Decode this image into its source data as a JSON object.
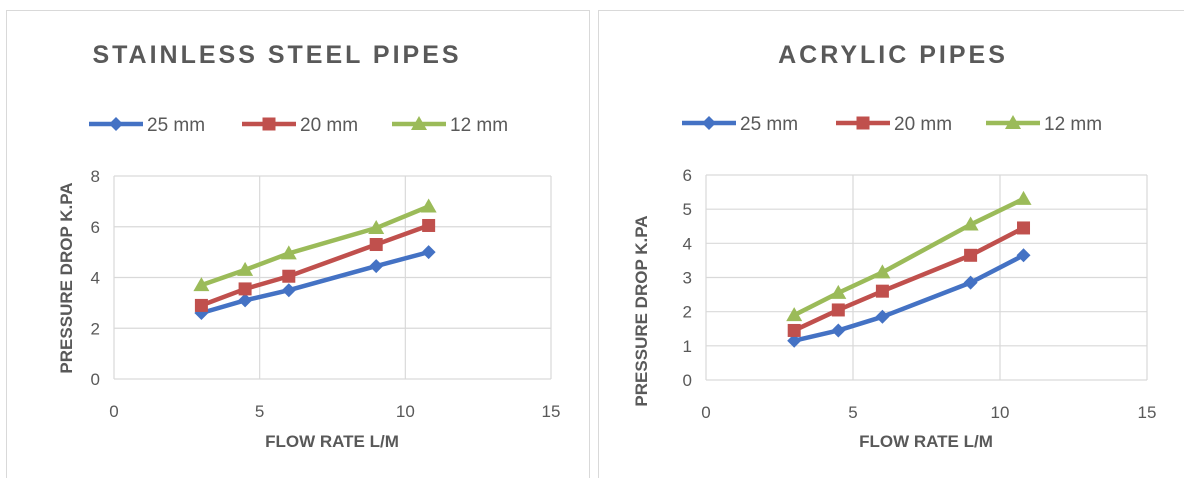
{
  "chart_data": [
    {
      "type": "line",
      "title": "STAINLESS STEEL PIPES",
      "xlabel": "FLOW RATE L/M",
      "ylabel": "PRESSURE DROP K.PA",
      "xlim": [
        0,
        15
      ],
      "ylim": [
        0,
        8
      ],
      "xticks": [
        0,
        5,
        10,
        15
      ],
      "yticks": [
        0,
        2,
        4,
        6,
        8
      ],
      "grid": true,
      "legend_position": "top",
      "series": [
        {
          "name": "25 mm",
          "color": "#4472C4",
          "marker": "diamond",
          "points": [
            [
              3,
              2.6
            ],
            [
              4.5,
              3.1
            ],
            [
              6,
              3.5
            ],
            [
              9,
              4.45
            ],
            [
              10.8,
              5.0
            ]
          ]
        },
        {
          "name": "20 mm",
          "color": "#C0504D",
          "marker": "square",
          "points": [
            [
              3,
              2.9
            ],
            [
              4.5,
              3.55
            ],
            [
              6,
              4.05
            ],
            [
              9,
              5.3
            ],
            [
              10.8,
              6.05
            ]
          ]
        },
        {
          "name": "12 mm",
          "color": "#9BBB59",
          "marker": "triangle",
          "points": [
            [
              3,
              3.7
            ],
            [
              4.5,
              4.3
            ],
            [
              6,
              4.95
            ],
            [
              9,
              5.95
            ],
            [
              10.8,
              6.8
            ]
          ]
        }
      ]
    },
    {
      "type": "line",
      "title": "ACRYLIC PIPES",
      "xlabel": "FLOW RATE L/M",
      "ylabel": "PRESSURE DROP K.PA",
      "xlim": [
        0,
        15
      ],
      "ylim": [
        0,
        6
      ],
      "xticks": [
        0,
        5,
        10,
        15
      ],
      "yticks": [
        0,
        1,
        2,
        3,
        4,
        5,
        6
      ],
      "grid": true,
      "legend_position": "top",
      "series": [
        {
          "name": "25 mm",
          "color": "#4472C4",
          "marker": "diamond",
          "points": [
            [
              3,
              1.15
            ],
            [
              4.5,
              1.45
            ],
            [
              6,
              1.85
            ],
            [
              9,
              2.85
            ],
            [
              10.8,
              3.65
            ]
          ]
        },
        {
          "name": "20 mm",
          "color": "#C0504D",
          "marker": "square",
          "points": [
            [
              3,
              1.45
            ],
            [
              4.5,
              2.05
            ],
            [
              6,
              2.6
            ],
            [
              9,
              3.65
            ],
            [
              10.8,
              4.45
            ]
          ]
        },
        {
          "name": "12 mm",
          "color": "#9BBB59",
          "marker": "triangle",
          "points": [
            [
              3,
              1.9
            ],
            [
              4.5,
              2.55
            ],
            [
              6,
              3.15
            ],
            [
              9,
              4.55
            ],
            [
              10.8,
              5.3
            ]
          ]
        }
      ]
    }
  ]
}
